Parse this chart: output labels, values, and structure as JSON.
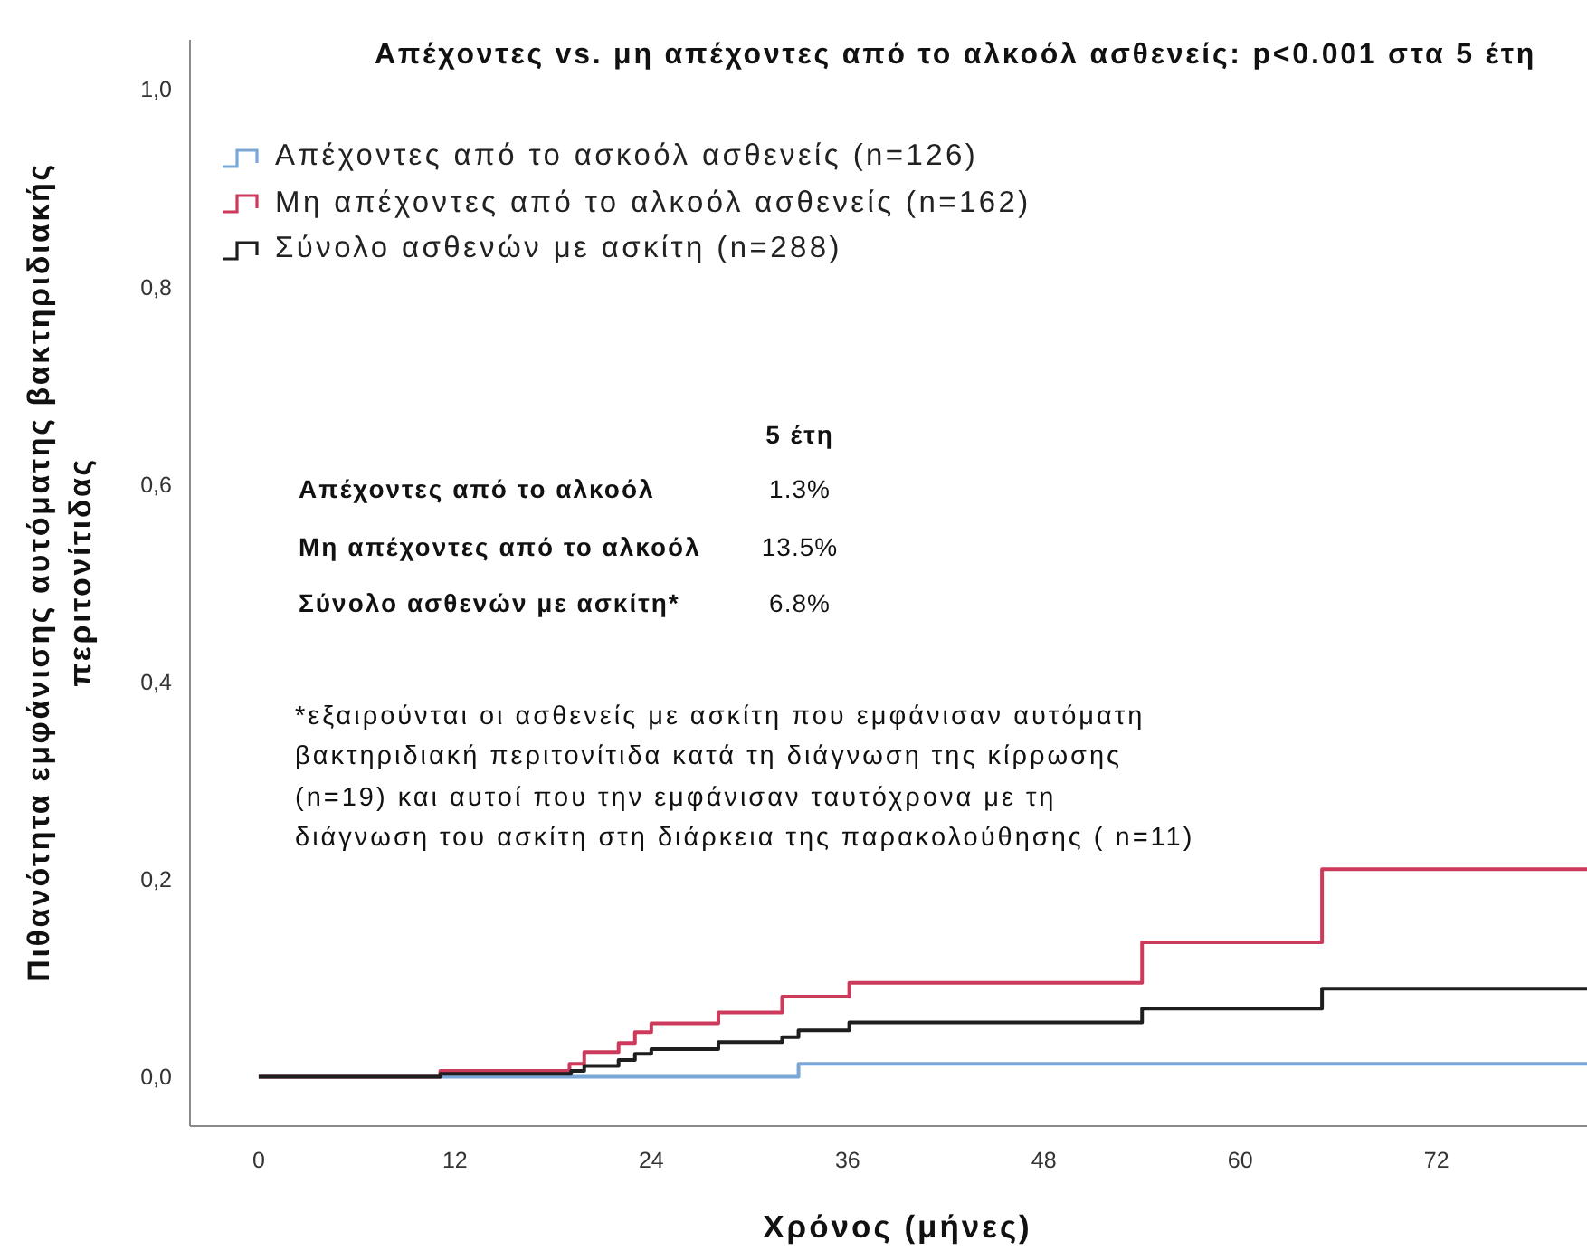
{
  "chart_data": {
    "type": "step",
    "title": "Απέχοντες vs. μη απέχοντες από το αλκοόλ ασθενείς: p<0.001 στα 5 έτη",
    "xlabel": "Χρόνος (μήνες)",
    "ylabel": "Πιθανότητα εμφάνισης αυτόματης βακτηριδιακής\nπεριτονίτιδας",
    "xlim": [
      -4.2,
      81.2
    ],
    "xticks": [
      0,
      12,
      24,
      36,
      48,
      60,
      72
    ],
    "ylim": [
      -0.05,
      1.05
    ],
    "yticks": [
      {
        "value": 0,
        "label": "0,0"
      },
      {
        "value": 0.2,
        "label": "0,2"
      },
      {
        "value": 0.4,
        "label": "0,4"
      },
      {
        "value": 0.6,
        "label": "0,6"
      },
      {
        "value": 0.8,
        "label": "0,8"
      },
      {
        "value": 1,
        "label": "1,0"
      }
    ],
    "series": [
      {
        "name": "Απέχοντες από το ασκοόλ ασθενείς (n=126)",
        "color": "#7ba7d6",
        "x": [
          0,
          33,
          81.2
        ],
        "values": [
          0,
          0.013,
          0.013
        ]
      },
      {
        "name": "Μη απέχοντες από το αλκοόλ ασθενείς (n=162)",
        "color": "#cc3a5c",
        "x": [
          0,
          11.1,
          19,
          19.9,
          22,
          23,
          24,
          28.1,
          32,
          36.1,
          54,
          65,
          81.2
        ],
        "values": [
          0,
          0.006,
          0.013,
          0.025,
          0.034,
          0.045,
          0.054,
          0.065,
          0.081,
          0.095,
          0.136,
          0.21,
          0.21
        ]
      },
      {
        "name": "Σύνολο ασθενών με ασκίτη (n=288)",
        "color": "#1e1e1e",
        "x": [
          0,
          11.1,
          19.1,
          19.9,
          22,
          23,
          24,
          28.1,
          32,
          33,
          36.1,
          54,
          65,
          81.2
        ],
        "values": [
          0,
          0.003,
          0.006,
          0.011,
          0.017,
          0.023,
          0.028,
          0.035,
          0.04,
          0.047,
          0.055,
          0.069,
          0.089,
          0.089
        ]
      }
    ],
    "annotations": [
      "5 έτη",
      "Απέχοντες από το αλκοόλ",
      "1.3%",
      "Μη απέχοντες από το αλκοόλ",
      "13.5%",
      "Σύνολο ασθενών με ασκίτη*",
      "6.8%",
      "*εξαιρούνται οι ασθενείς με ασκίτη που εμφάνισαν αυτόματη\nβακτηριδιακή περιτονίτιδα κατά τη διάγνωση της κίρρωσης\n(n=19) και αυτοί που την εμφάνισαν ταυτόχρονα με τη\nδιάγνωση του ασκίτη στη διάρκεια της παρακολούθησης ( n=11)"
    ],
    "legend": "top left",
    "grid": false,
    "marker": "none",
    "line_style": "solid"
  }
}
